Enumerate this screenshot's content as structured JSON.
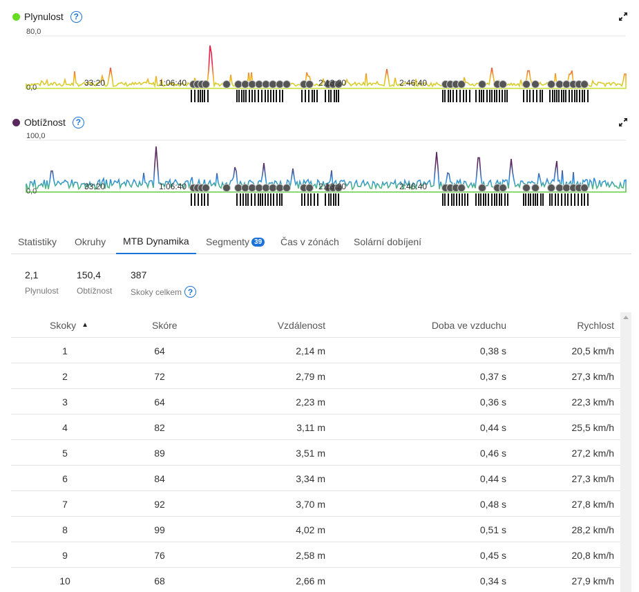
{
  "charts": [
    {
      "title": "Plynulost",
      "dot_color": "#66dd22",
      "y_max_label": "80,0",
      "y_min_label": "0,0",
      "time_labels": [
        "33:20",
        "1:06:40",
        "2:13:20",
        "2:46:40"
      ]
    },
    {
      "title": "Obtížnost",
      "dot_color": "#5a2a5e",
      "y_max_label": "100,0",
      "y_min_label": "0,0",
      "time_labels": [
        "33:20",
        "1:06:40",
        "2:13:20",
        "2:46:40"
      ]
    }
  ],
  "help_icon": "question-circle-icon",
  "expand_icon": "expand-arrows-icon",
  "tabs": [
    {
      "label": "Statistiky",
      "active": false
    },
    {
      "label": "Okruhy",
      "active": false
    },
    {
      "label": "MTB Dynamika",
      "active": true
    },
    {
      "label": "Segmenty",
      "badge": "39",
      "active": false
    },
    {
      "label": "Čas v zónách",
      "active": false
    },
    {
      "label": "Solární dobíjení",
      "active": false
    }
  ],
  "summary": [
    {
      "value": "2,1",
      "label": "Plynulost"
    },
    {
      "value": "150,4",
      "label": "Obtížnost"
    },
    {
      "value": "387",
      "label": "Skoky celkem"
    }
  ],
  "table": {
    "columns": [
      "Skoky",
      "Skóre",
      "Vzdálenost",
      "Doba ve vzduchu",
      "Rychlost"
    ],
    "sort_indicator": "▲",
    "rows": [
      [
        "1",
        "64",
        "2,14 m",
        "0,38 s",
        "20,5 km/h"
      ],
      [
        "2",
        "72",
        "2,79 m",
        "0,37 s",
        "27,3 km/h"
      ],
      [
        "3",
        "64",
        "2,23 m",
        "0,36 s",
        "22,3 km/h"
      ],
      [
        "4",
        "82",
        "3,11 m",
        "0,44 s",
        "25,5 km/h"
      ],
      [
        "5",
        "89",
        "3,51 m",
        "0,46 s",
        "27,2 km/h"
      ],
      [
        "6",
        "84",
        "3,34 m",
        "0,44 s",
        "27,3 km/h"
      ],
      [
        "7",
        "92",
        "3,70 m",
        "0,48 s",
        "27,8 km/h"
      ],
      [
        "8",
        "99",
        "4,02 m",
        "0,51 s",
        "28,2 km/h"
      ],
      [
        "9",
        "76",
        "2,58 m",
        "0,45 s",
        "20,8 km/h"
      ],
      [
        "10",
        "68",
        "2,66 m",
        "0,34 s",
        "27,9 km/h"
      ]
    ]
  }
}
